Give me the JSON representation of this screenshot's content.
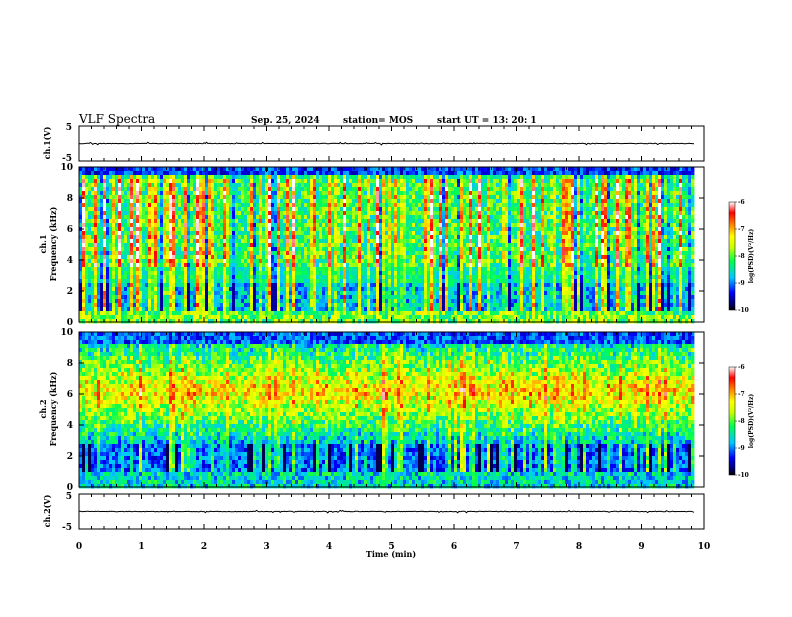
{
  "header": {
    "title": "VLF Spectra",
    "date": "Sep. 25, 2024",
    "station": "station= MOS",
    "start": "start  UT  =   13: 20: 1"
  },
  "chart_data": [
    {
      "type": "line",
      "id": "ch1_waveform",
      "ylabel": "ch.1(V)",
      "ylim": [
        -5,
        5
      ],
      "yticks": [
        "5",
        "-5"
      ],
      "x": [
        0,
        1,
        2,
        3,
        4,
        5,
        6,
        7,
        8,
        9,
        9.85
      ],
      "values": [
        0,
        0,
        0,
        0,
        0,
        0,
        0,
        0,
        0,
        0,
        0
      ]
    },
    {
      "type": "heatmap",
      "id": "ch1_spectrogram",
      "ylabel": "ch.1\nFrequency (kHz)",
      "ylim": [
        0,
        10
      ],
      "yticks": [
        "0",
        "2",
        "4",
        "6",
        "8",
        "10"
      ],
      "xlim": [
        0,
        10
      ],
      "x_end_data": 9.85,
      "colorbar": {
        "label": "log(PSD)(V²/Hz)",
        "range": [
          -10,
          -6
        ],
        "ticks": [
          "-6",
          "-7",
          "-8",
          "-9",
          "-10"
        ]
      }
    },
    {
      "type": "heatmap",
      "id": "ch2_spectrogram",
      "ylabel": "ch.2\nFrequency (kHz)",
      "ylim": [
        0,
        10
      ],
      "yticks": [
        "0",
        "2",
        "4",
        "6",
        "8",
        "10"
      ],
      "xlim": [
        0,
        10
      ],
      "x_end_data": 9.85,
      "colorbar": {
        "label": "log(PSD)(V²/Hz)",
        "range": [
          -10,
          -6
        ],
        "ticks": [
          "-6",
          "-7",
          "-8",
          "-9",
          "-10"
        ]
      }
    },
    {
      "type": "line",
      "id": "ch2_waveform",
      "ylabel": "ch.2(V)",
      "ylim": [
        -5,
        5
      ],
      "yticks": [
        "5",
        "-5"
      ],
      "xlabel": "Time  (min)",
      "xlim": [
        0,
        10
      ],
      "xticks": [
        "0",
        "1",
        "2",
        "3",
        "4",
        "5",
        "6",
        "7",
        "8",
        "9",
        "10"
      ],
      "x": [
        0,
        1,
        2,
        3,
        4,
        5,
        6,
        7,
        8,
        9,
        9.85
      ],
      "values": [
        0,
        0,
        0,
        0,
        0,
        0,
        0,
        0,
        0,
        0,
        0
      ]
    }
  ]
}
